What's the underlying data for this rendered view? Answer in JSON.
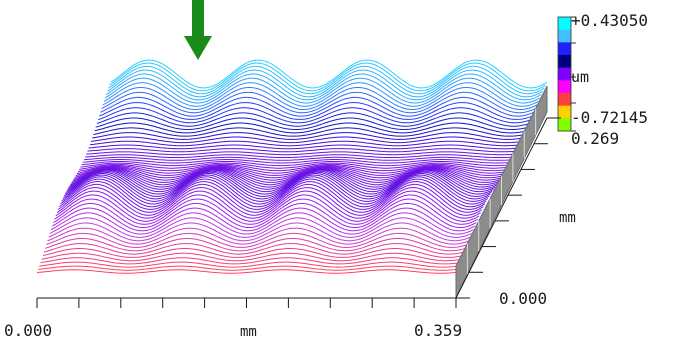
{
  "chart_data": {
    "type": "3d-surface-profile",
    "title": "",
    "unit": "um",
    "z_max_label": "+0.43050",
    "z_min_label": "-0.72145",
    "y_max_label": "0.269",
    "y_min_label": "0.000",
    "y_axis_label": "mm",
    "x_min_label": "0.000",
    "x_max_label": "0.359",
    "x_axis_label": "mm",
    "z_range_um": [
      -0.72145,
      0.4305
    ],
    "x_range_mm": [
      0,
      0.359
    ],
    "y_range_mm": [
      0,
      0.269
    ],
    "ridge_count_across_x": 4,
    "ridge_rows_along_y": 3,
    "colorbar": [
      "#00ffff",
      "#40c0ff",
      "#2020ff",
      "#000080",
      "#8000ff",
      "#ff00ff",
      "#ff4040",
      "#ffd000",
      "#80ff00"
    ],
    "arrow_color": "#1a8a1a",
    "grid": false
  }
}
